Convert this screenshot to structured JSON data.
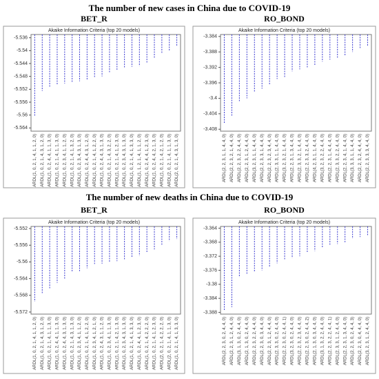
{
  "section_titles": [
    "The number of new cases in China due to COVID-19",
    "The number of new deaths in China due to COVID-19"
  ],
  "chart_data": [
    {
      "type": "dropline",
      "subtitle": "BET_R",
      "title": "Akaike Information Criteria (top 20 models)",
      "color": "#3a3ad0",
      "grid": false,
      "ylim": [
        -5.565,
        -5.535
      ],
      "yticks": [
        -5.536,
        -5.54,
        -5.544,
        -5.548,
        -5.552,
        -5.556,
        -5.56,
        -5.564
      ],
      "categories": [
        "ARDL(1, 0, 2, 1, 4, 1, 1, 2, 0)",
        "ARDL(1, 0, 2, 1, 4, 3, 1, 2, 0)",
        "ARDL(1, 0, 2, 4, 4, 1, 1, 3, 0)",
        "ARDL(1, 0, 2, 1, 4, 1, 1, 3, 0)",
        "ARDL(1, 0, 2, 3, 4, 1, 1, 2, 0)",
        "ARDL(1, 0, 2, 1, 4, 1, 3, 2, 0)",
        "ARDL(1, 0, 2, 3, 4, 3, 1, 3, 0)",
        "ARDL(1, 0, 2, 4, 4, 3, 1, 2, 0)",
        "ARDL(1, 0, 2, 1, 4, 1, 2, 2, 0)",
        "ARDL(1, 0, 2, 4, 4, 3, 1, 3, 0)",
        "ARDL(1, 0, 2, 1, 4, 3, 2, 2, 0)",
        "ARDL(1, 0, 2, 1, 4, 1, 2, 3, 0)",
        "ARDL(1, 0, 2, 3, 4, 3, 1, 3, 0)",
        "ARDL(1, 0, 2, 1, 4, 1, 3, 3, 0)",
        "ARDL(1, 1, 2, 1, 4, 1, 1, 2, 0)",
        "ARDL(1, 0, 2, 4, 4, 1, 2, 3, 0)",
        "ARDL(1, 0, 2, 4, 4, 2, 1, 3, 0)",
        "ARDL(1, 0, 2, 1, 4, 2, 1, 2, 0)",
        "ARDL(2, 0, 2, 1, 4, 1, 1, 3, 0)",
        "ARDL(2, 0, 2, 1, 4, 3, 1, 3, 0)"
      ],
      "values": [
        -5.5605,
        -5.5525,
        -5.5515,
        -5.5505,
        -5.5502,
        -5.55,
        -5.5495,
        -5.549,
        -5.5485,
        -5.548,
        -5.547,
        -5.546,
        -5.5455,
        -5.545,
        -5.5448,
        -5.544,
        -5.5425,
        -5.541,
        -5.54,
        -5.5385
      ]
    },
    {
      "type": "dropline",
      "subtitle": "RO_BOND",
      "title": "Akaike Information Criteria (top 20 models)",
      "color": "#3a3ad0",
      "grid": false,
      "ylim": [
        -3.4085,
        -3.3835
      ],
      "yticks": [
        -3.384,
        -3.388,
        -3.392,
        -3.396,
        -3.4,
        -3.404,
        -3.408
      ],
      "categories": [
        "ARDL(2, 2, 3, 1, 1, 4, 4, 0)",
        "ARDL(2, 2, 3, 2, 1, 4, 4, 0)",
        "ARDL(2, 2, 3, 2, 2, 4, 4, 0)",
        "ARDL(2, 2, 3, 1, 2, 4, 4, 0)",
        "ARDL(3, 2, 3, 1, 1, 4, 4, 0)",
        "ARDL(2, 2, 3, 3, 1, 4, 4, 0)",
        "ARDL(2, 2, 3, 2, 3, 4, 4, 0)",
        "ARDL(2, 3, 3, 1, 1, 4, 4, 0)",
        "ARDL(3, 2, 3, 2, 1, 4, 4, 0)",
        "ARDL(2, 2, 3, 1, 3, 4, 4, 0)",
        "ARDL(2, 3, 3, 2, 1, 4, 4, 0)",
        "ARDL(2, 2, 3, 3, 2, 4, 4, 0)",
        "ARDL(4, 2, 3, 1, 1, 4, 4, 0)",
        "ARDL(3, 2, 3, 2, 2, 4, 4, 0)",
        "ARDL(2, 2, 3, 1, 4, 4, 4, 0)",
        "ARDL(2, 3, 3, 2, 2, 4, 4, 0)",
        "ARDL(2, 2, 3, 4, 1, 4, 4, 0)",
        "ARDL(3, 3, 3, 1, 1, 4, 4, 0)",
        "ARDL(2, 2, 3, 2, 4, 4, 4, 0)",
        "ARDL(2, 2, 3, 3, 3, 4, 4, 0)"
      ],
      "values": [
        -3.4065,
        -3.4045,
        -3.401,
        -3.4,
        -3.3985,
        -3.3975,
        -3.3965,
        -3.395,
        -3.3945,
        -3.393,
        -3.3925,
        -3.392,
        -3.3915,
        -3.3905,
        -3.39,
        -3.3895,
        -3.389,
        -3.388,
        -3.387,
        -3.3865
      ]
    },
    {
      "type": "dropline",
      "subtitle": "BET_R",
      "title": "Akaike Information Criteria (top 20 models)",
      "color": "#3a3ad0",
      "grid": false,
      "ylim": [
        -5.5725,
        -5.5515
      ],
      "yticks": [
        -5.552,
        -5.556,
        -5.56,
        -5.564,
        -5.568,
        -5.572
      ],
      "categories": [
        "ARDL(1, 0, 2, 1, 4, 1, 1, 2, 0)",
        "ARDL(1, 0, 2, 1, 4, 3, 1, 2, 0)",
        "ARDL(1, 0, 2, 1, 4, 1, 1, 3, 0)",
        "ARDL(1, 0, 2, 4, 4, 1, 1, 3, 0)",
        "ARDL(1, 0, 2, 4, 4, 3, 1, 3, 0)",
        "ARDL(1, 0, 2, 1, 4, 3, 1, 3, 0)",
        "ARDL(1, 0, 2, 3, 4, 1, 1, 2, 0)",
        "ARDL(1, 0, 2, 1, 4, 1, 2, 2, 0)",
        "ARDL(1, 0, 2, 3, 4, 1, 2, 1, 0)",
        "ARDL(1, 0, 2, 4, 3, 1, 1, 2, 0)",
        "ARDL(1, 0, 2, 3, 4, 1, 1, 3, 0)",
        "ARDL(1, 0, 2, 1, 4, 2, 1, 3, 0)",
        "ARDL(1, 0, 2, 3, 4, 3, 1, 3, 0)",
        "ARDL(1, 0, 2, 1, 4, 1, 3, 3, 0)",
        "ARDL(1, 0, 2, 4, 4, 1, 2, 3, 0)",
        "ARDL(1, 0, 2, 1, 4, 2, 2, 2, 0)",
        "ARDL(1, 0, 2, 1, 4, 1, 2, 3, 0)",
        "ARDL(2, 0, 2, 1, 4, 2, 2, 2, 0)",
        "ARDL(2, 0, 2, 1, 4, 1, 1, 3, 0)",
        "ARDL(1, 0, 2, 1, 4, 1, 3, 3, 0)"
      ],
      "values": [
        -5.5695,
        -5.5675,
        -5.5665,
        -5.565,
        -5.564,
        -5.5625,
        -5.5622,
        -5.5615,
        -5.5605,
        -5.5604,
        -5.56,
        -5.5598,
        -5.5595,
        -5.559,
        -5.5585,
        -5.5578,
        -5.557,
        -5.556,
        -5.555,
        -5.5545
      ]
    },
    {
      "type": "dropline",
      "subtitle": "RO_BOND",
      "title": "Akaike Information Criteria (top 20 models)",
      "color": "#3a3ad0",
      "grid": false,
      "ylim": [
        -3.3885,
        -3.3635
      ],
      "yticks": [
        -3.364,
        -3.368,
        -3.372,
        -3.376,
        -3.38,
        -3.384,
        -3.388
      ],
      "categories": [
        "ARDL(2, 2, 3, 0, 2, 4, 4, 0)",
        "ARDL(2, 2, 3, 1, 2, 4, 4, 0)",
        "ARDL(3, 1, 3, 0, 2, 4, 4, 0)",
        "ARDL(2, 1, 3, 0, 2, 4, 4, 0)",
        "ARDL(2, 2, 3, 2, 2, 4, 4, 0)",
        "ARDL(2, 2, 3, 0, 3, 4, 4, 0)",
        "ARDL(2, 2, 3, 1, 2, 4, 4, 0)",
        "ARDL(2, 3, 3, 0, 2, 4, 4, 0)",
        "ARDL(2, 2, 3, 0, 2, 4, 4, 1)",
        "ARDL(3, 2, 3, 0, 2, 4, 4, 0)",
        "ARDL(2, 2, 3, 2, 3, 4, 4, 0)",
        "ARDL(2, 2, 3, 0, 2, 4, 4, 2)",
        "ARDL(2, 1, 3, 0, 3, 4, 4, 0)",
        "ARDL(3, 1, 3, 2, 2, 4, 4, 0)",
        "ARDL(2, 2, 3, 2, 2, 4, 4, 1)",
        "ARDL(2, 3, 3, 1, 2, 4, 4, 0)",
        "ARDL(2, 2, 3, 1, 3, 4, 4, 0)",
        "ARDL(2, 2, 3, 0, 2, 4, 4, 3)",
        "ARDL(2, 2, 3, 0, 4, 4, 4, 0)",
        "ARDL(3, 2, 3, 1, 2, 4, 4, 0)"
      ],
      "values": [
        -3.3875,
        -3.3865,
        -3.378,
        -3.377,
        -3.3765,
        -3.376,
        -3.375,
        -3.374,
        -3.373,
        -3.3725,
        -3.372,
        -3.371,
        -3.3705,
        -3.3695,
        -3.369,
        -3.3685,
        -3.368,
        -3.367,
        -3.3665,
        -3.366
      ]
    }
  ]
}
